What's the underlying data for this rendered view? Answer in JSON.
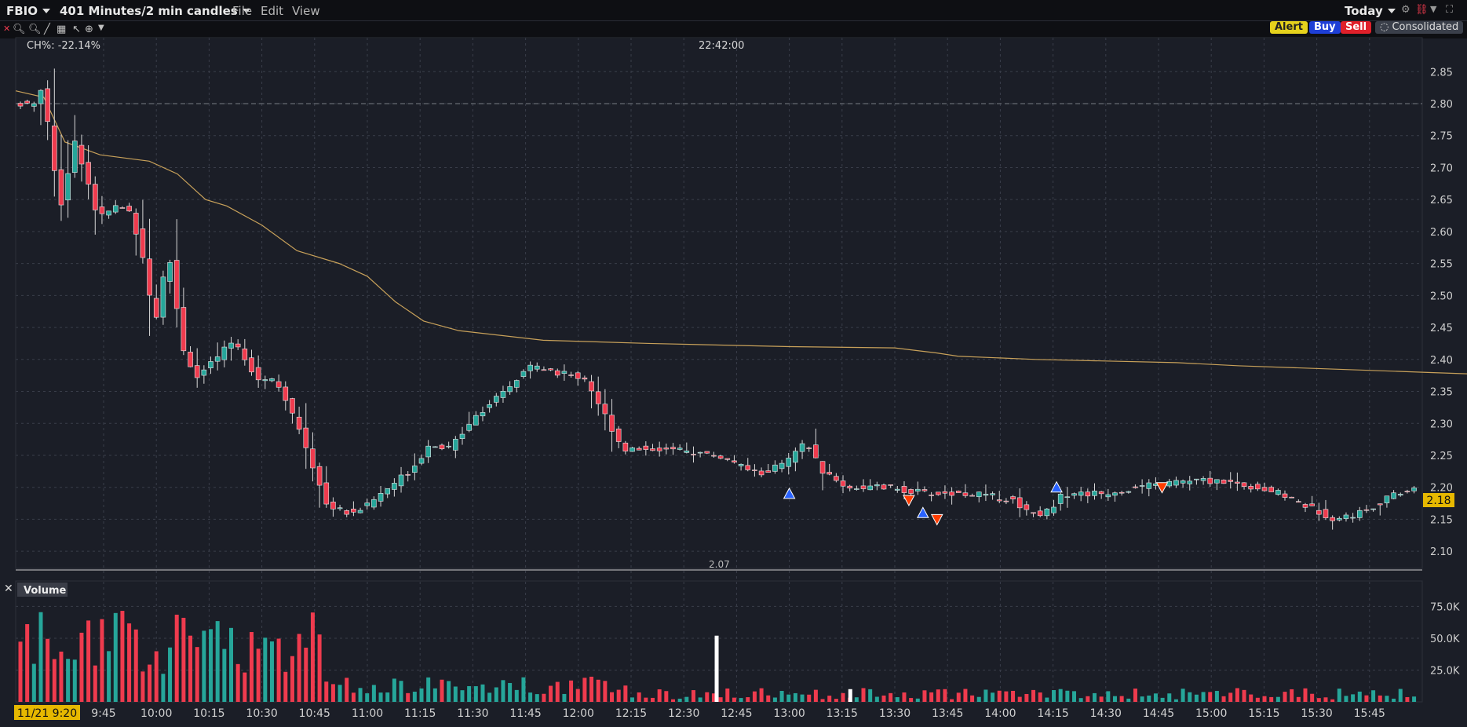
{
  "header": {
    "symbol": "FBIO",
    "period": "401 Minutes/2 min candles",
    "menus": [
      "File",
      "Edit",
      "View"
    ],
    "range": "Today"
  },
  "buttons": {
    "alert": "Alert",
    "buy": "Buy",
    "sell": "Sell",
    "consolidated": "Consolidated"
  },
  "colors": {
    "up": "#26a69a",
    "down": "#ef3b4e",
    "vwap": "#c8a15a",
    "bg": "#1b1e27",
    "buyMarker": "#2962ff",
    "sellMarker": "#ff3d00"
  },
  "chart_data": [
    {
      "type": "candlestick",
      "title": "FBIO",
      "indicator": "CH%: -22.14%",
      "crosshair_time": "22:42:00",
      "last_price": "2.18",
      "min_price_label": "2.07",
      "y_ticks": [
        "2.85",
        "2.80",
        "2.75",
        "2.70",
        "2.65",
        "2.60",
        "2.55",
        "2.50",
        "2.45",
        "2.40",
        "2.35",
        "2.30",
        "2.25",
        "2.20",
        "2.15",
        "2.10"
      ],
      "ylim": [
        2.07,
        2.88
      ],
      "reference_line": 2.8,
      "x_ticks": [
        "9:45",
        "10:00",
        "10:15",
        "10:30",
        "10:45",
        "11:00",
        "11:15",
        "11:30",
        "11:45",
        "12:00",
        "12:15",
        "12:30",
        "12:45",
        "13:00",
        "13:15",
        "13:30",
        "13:45",
        "14:00",
        "14:15",
        "14:30",
        "14:45",
        "15:00",
        "15:15",
        "15:30",
        "15:45"
      ],
      "x_start_label": "11/21 9:20",
      "markers": [
        {
          "time": "13:00",
          "price": 2.19,
          "side": "buy"
        },
        {
          "time": "13:34",
          "price": 2.18,
          "side": "sell"
        },
        {
          "time": "13:38",
          "price": 2.16,
          "side": "buy"
        },
        {
          "time": "13:42",
          "price": 2.15,
          "side": "sell"
        },
        {
          "time": "14:16",
          "price": 2.2,
          "side": "buy"
        },
        {
          "time": "14:46",
          "price": 2.2,
          "side": "sell"
        }
      ],
      "vwap": [
        [
          0,
          2.82
        ],
        [
          8,
          2.81
        ],
        [
          14,
          2.74
        ],
        [
          24,
          2.72
        ],
        [
          38,
          2.71
        ],
        [
          46,
          2.69
        ],
        [
          54,
          2.65
        ],
        [
          60,
          2.64
        ],
        [
          70,
          2.61
        ],
        [
          80,
          2.57
        ],
        [
          92,
          2.55
        ],
        [
          100,
          2.53
        ],
        [
          108,
          2.49
        ],
        [
          116,
          2.46
        ],
        [
          126,
          2.445
        ],
        [
          150,
          2.43
        ],
        [
          180,
          2.425
        ],
        [
          220,
          2.42
        ],
        [
          250,
          2.418
        ],
        [
          262,
          2.41
        ],
        [
          268,
          2.405
        ],
        [
          290,
          2.4
        ],
        [
          330,
          2.395
        ],
        [
          348,
          2.39
        ],
        [
          400,
          2.38
        ],
        [
          450,
          2.37
        ],
        [
          520,
          2.365
        ],
        [
          560,
          2.362
        ],
        [
          590,
          2.36
        ]
      ]
    },
    {
      "type": "bar",
      "title": "Volume",
      "y_ticks": [
        "75.0K",
        "50.0K",
        "25.0K"
      ],
      "ylim": [
        0,
        95000
      ]
    }
  ]
}
